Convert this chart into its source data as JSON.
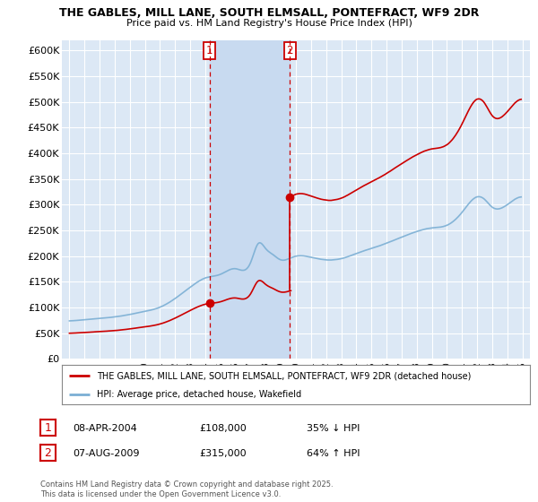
{
  "title1": "THE GABLES, MILL LANE, SOUTH ELMSALL, PONTEFRACT, WF9 2DR",
  "title2": "Price paid vs. HM Land Registry's House Price Index (HPI)",
  "legend_line1": "THE GABLES, MILL LANE, SOUTH ELMSALL, PONTEFRACT, WF9 2DR (detached house)",
  "legend_line2": "HPI: Average price, detached house, Wakefield",
  "footnote": "Contains HM Land Registry data © Crown copyright and database right 2025.\nThis data is licensed under the Open Government Licence v3.0.",
  "annotation1_date": "08-APR-2004",
  "annotation1_price": "£108,000",
  "annotation1_hpi": "35% ↓ HPI",
  "annotation2_date": "07-AUG-2009",
  "annotation2_price": "£315,000",
  "annotation2_hpi": "64% ↑ HPI",
  "red_color": "#cc0000",
  "blue_color": "#7bafd4",
  "background_color": "#ffffff",
  "grid_color": "#cccccc",
  "vline_color": "#cc0000",
  "annotation_box_color": "#cc0000",
  "plot_bg_color": "#dce8f5",
  "shade_color": "#c8daf0",
  "ylim": [
    0,
    620000
  ],
  "yticks": [
    0,
    50000,
    100000,
    150000,
    200000,
    250000,
    300000,
    350000,
    400000,
    450000,
    500000,
    550000,
    600000
  ],
  "ytick_labels": [
    "£0",
    "£50K",
    "£100K",
    "£150K",
    "£200K",
    "£250K",
    "£300K",
    "£350K",
    "£400K",
    "£450K",
    "£500K",
    "£550K",
    "£600K"
  ],
  "vline1_x": 2004.27,
  "vline2_x": 2009.6,
  "marker1_x": 2004.27,
  "marker1_y": 108000,
  "marker2_x": 2009.6,
  "marker2_y": 315000,
  "sale1_hpi_index": 159.5,
  "sale2_hpi_index": 211.0,
  "sale1_price": 108000,
  "sale2_price": 315000,
  "xlim_left": 1994.5,
  "xlim_right": 2025.5
}
